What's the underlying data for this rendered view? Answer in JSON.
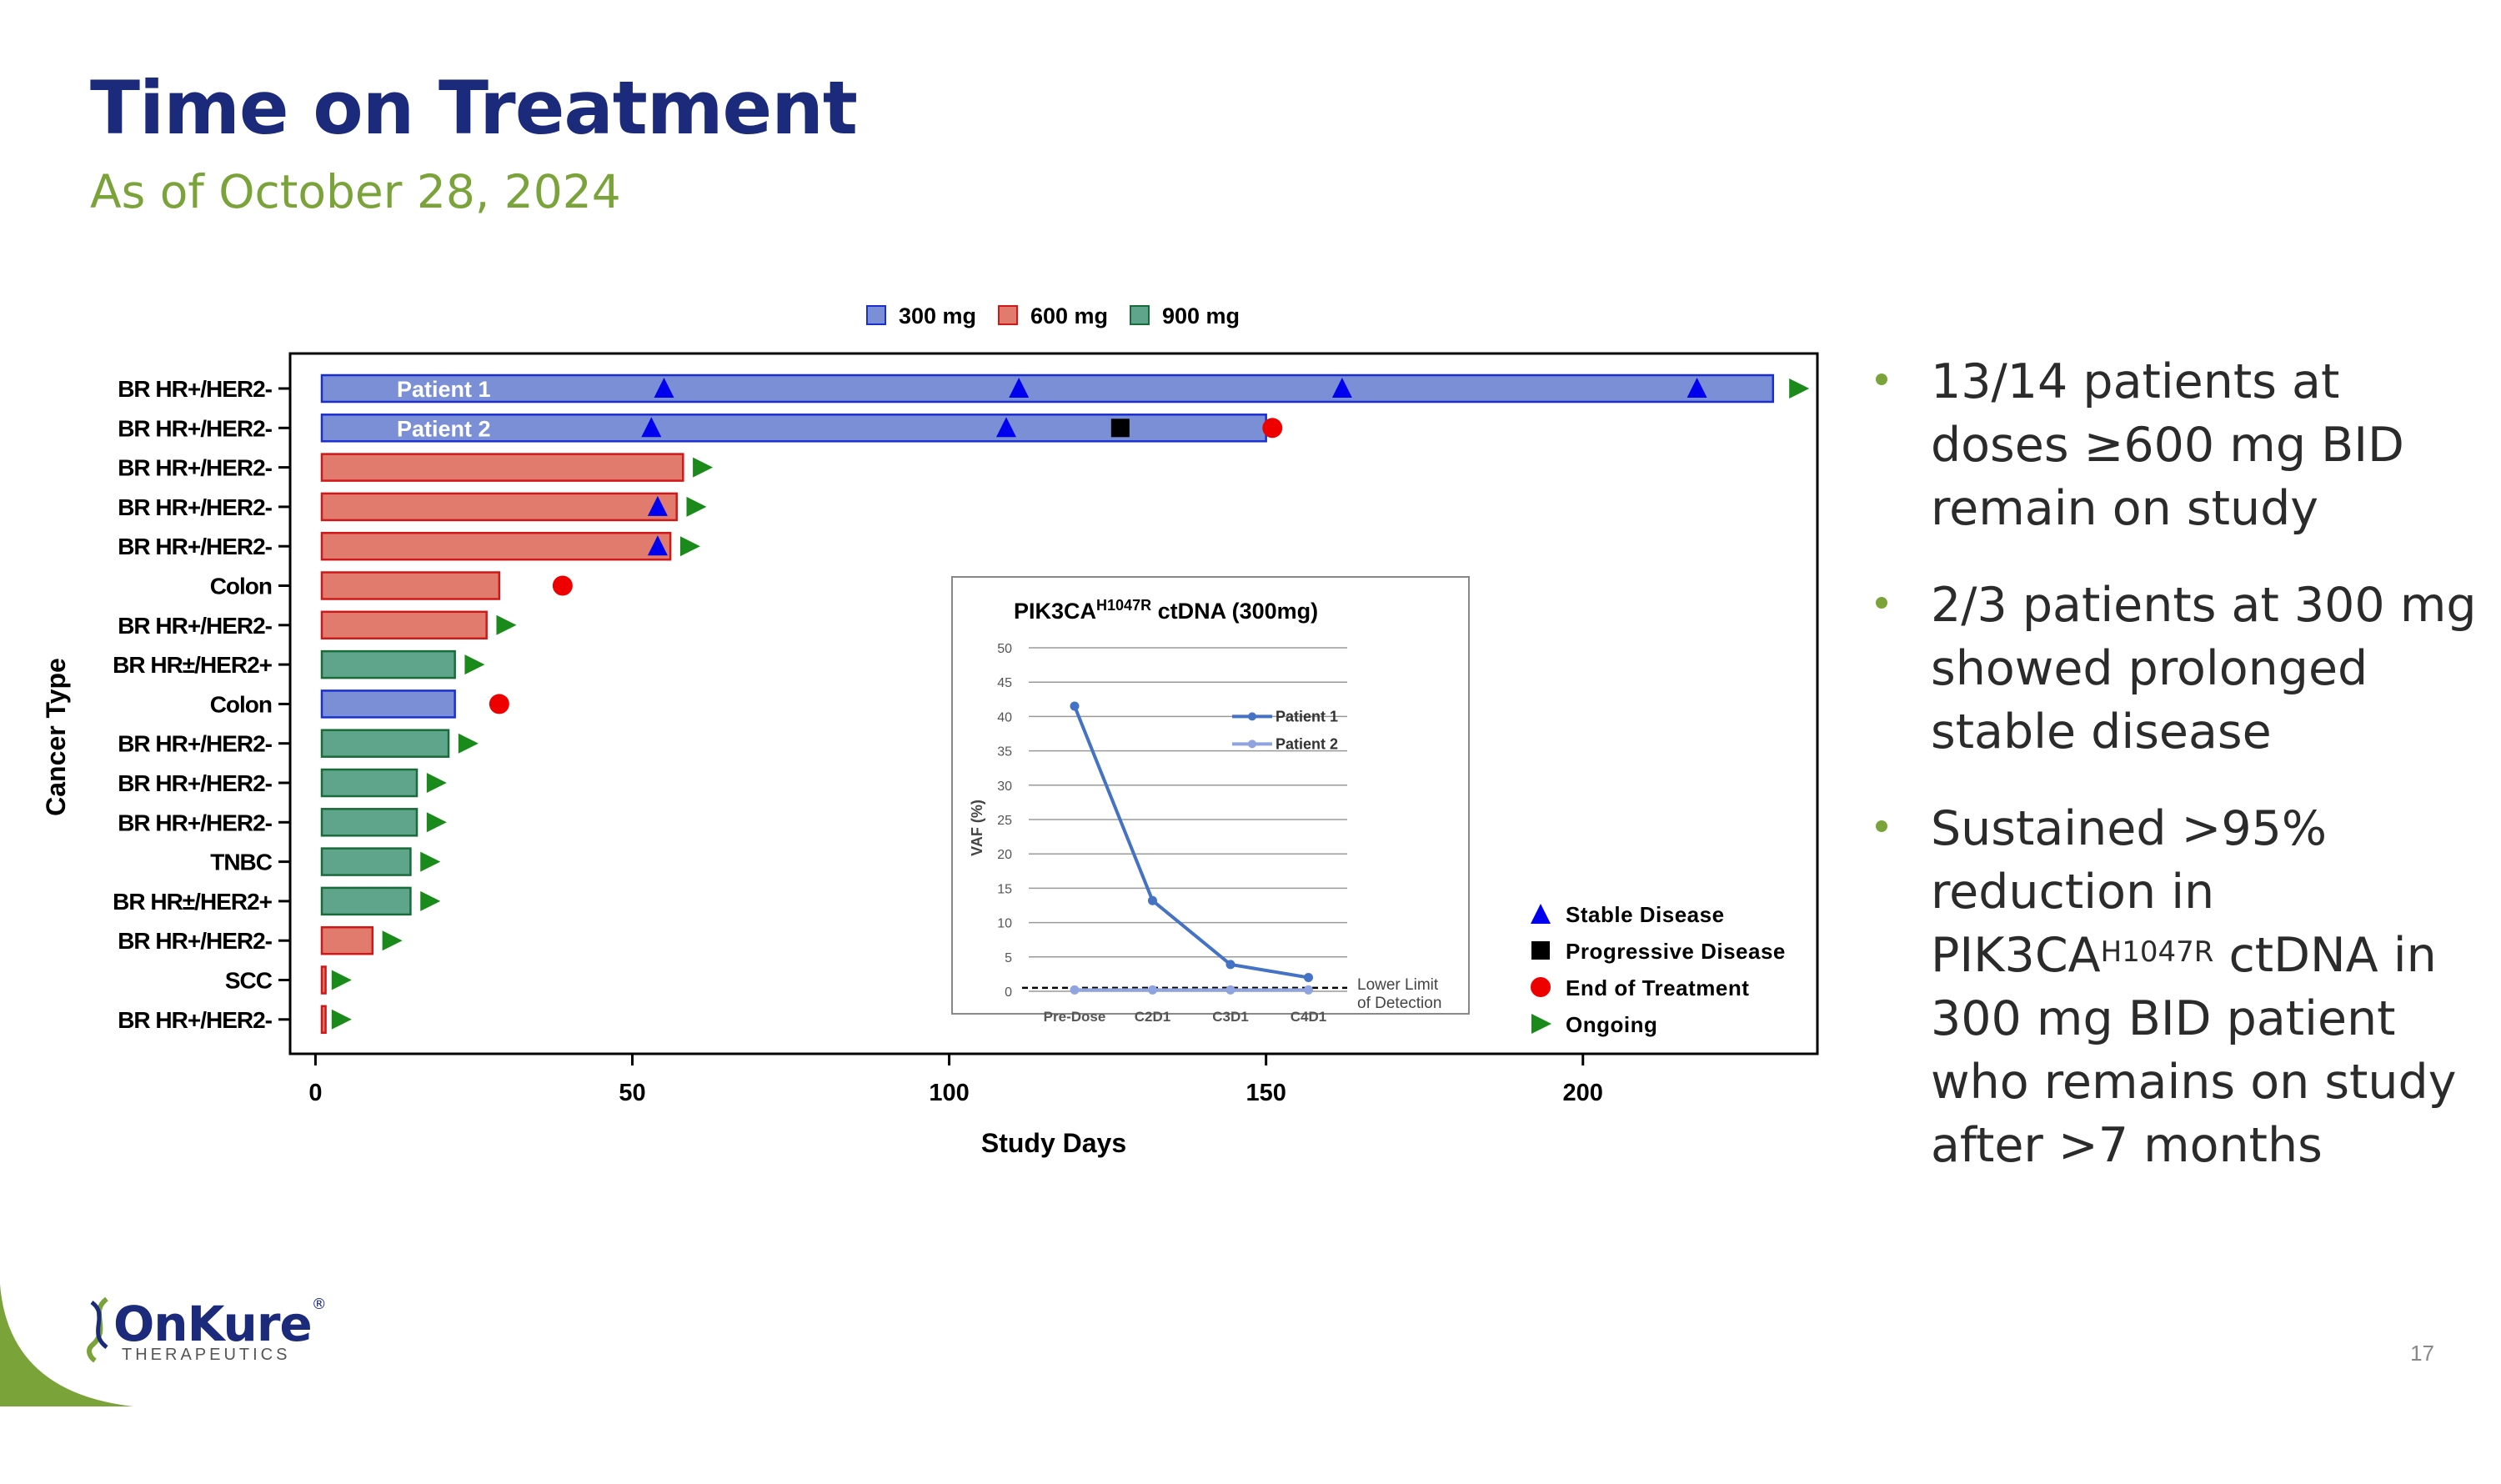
{
  "title": "Time on Treatment",
  "subtitle": "As of October 28, 2024",
  "bullets": [
    {
      "parts": [
        {
          "t": "13/14 patients at doses ≥600 mg BID remain on study"
        }
      ]
    },
    {
      "parts": [
        {
          "t": "2/3 patients at 300 mg showed prolonged stable disease"
        }
      ]
    },
    {
      "parts": [
        {
          "t": "Sustained >95% reduction in PIK3CA"
        },
        {
          "t": "H1047R",
          "sup": true
        },
        {
          "t": " ctDNA in 300 mg BID patient who remains on study after >7 months"
        }
      ]
    }
  ],
  "page_number": "17",
  "logo": {
    "name": "OnKure",
    "registered": "®",
    "tagline": "THERAPEUTICS"
  },
  "colors": {
    "navy": "#1b2a7a",
    "green": "#7aa33a",
    "dose300": "#7b8fd6",
    "dose600": "#e07b6e",
    "dose900": "#5fa58b",
    "stable": "#0000ee",
    "end": "#ee0000",
    "ongoing": "#1a8a1a"
  },
  "chart_data": [
    {
      "type": "swimmer",
      "xlabel": "Study Days",
      "ylabel": "Cancer Type",
      "xlim": [
        -4,
        237
      ],
      "xticks": [
        0,
        50,
        100,
        150,
        200
      ],
      "dose_legend": [
        {
          "dose": "300mg",
          "label": "300 mg"
        },
        {
          "dose": "600mg",
          "label": "600 mg"
        },
        {
          "dose": "900mg",
          "label": "900 mg"
        }
      ],
      "event_legend": [
        {
          "shape": "triangle",
          "label": "Stable Disease"
        },
        {
          "shape": "square",
          "label": "Progressive Disease"
        },
        {
          "shape": "circle",
          "label": "End of Treatment"
        },
        {
          "shape": "arrow",
          "label": "Ongoing"
        }
      ],
      "rows": [
        {
          "type": "BR HR+/HER2-",
          "dose": "300mg",
          "start": 1,
          "end": 230,
          "label": "Patient 1",
          "stable": [
            55,
            111,
            162,
            218
          ],
          "pd": [],
          "eot": [],
          "ongoing": 234
        },
        {
          "type": "BR HR+/HER2-",
          "dose": "300mg",
          "start": 1,
          "end": 150,
          "label": "Patient 2",
          "stable": [
            53,
            109
          ],
          "pd": [
            127
          ],
          "eot": [
            151
          ],
          "ongoing": null
        },
        {
          "type": "BR HR+/HER2-",
          "dose": "600mg",
          "start": 1,
          "end": 58,
          "label": "",
          "stable": [],
          "pd": [],
          "eot": [],
          "ongoing": 61
        },
        {
          "type": "BR HR+/HER2-",
          "dose": "600mg",
          "start": 1,
          "end": 57,
          "label": "",
          "stable": [
            54
          ],
          "pd": [],
          "eot": [],
          "ongoing": 60
        },
        {
          "type": "BR HR+/HER2-",
          "dose": "600mg",
          "start": 1,
          "end": 56,
          "label": "",
          "stable": [
            54
          ],
          "pd": [],
          "eot": [],
          "ongoing": 59
        },
        {
          "type": "Colon",
          "dose": "600mg",
          "start": 1,
          "end": 29,
          "label": "",
          "stable": [],
          "pd": [],
          "eot": [
            39
          ],
          "ongoing": null
        },
        {
          "type": "BR HR+/HER2-",
          "dose": "600mg",
          "start": 1,
          "end": 27,
          "label": "",
          "stable": [],
          "pd": [],
          "eot": [],
          "ongoing": 30
        },
        {
          "type": "BR HR±/HER2+",
          "dose": "900mg",
          "start": 1,
          "end": 22,
          "label": "",
          "stable": [],
          "pd": [],
          "eot": [],
          "ongoing": 25
        },
        {
          "type": "Colon",
          "dose": "300mg",
          "start": 1,
          "end": 22,
          "label": "",
          "stable": [],
          "pd": [],
          "eot": [
            29
          ],
          "ongoing": null
        },
        {
          "type": "BR HR+/HER2-",
          "dose": "900mg",
          "start": 1,
          "end": 21,
          "label": "",
          "stable": [],
          "pd": [],
          "eot": [],
          "ongoing": 24
        },
        {
          "type": "BR HR+/HER2-",
          "dose": "900mg",
          "start": 1,
          "end": 16,
          "label": "",
          "stable": [],
          "pd": [],
          "eot": [],
          "ongoing": 19
        },
        {
          "type": "BR HR+/HER2-",
          "dose": "900mg",
          "start": 1,
          "end": 16,
          "label": "",
          "stable": [],
          "pd": [],
          "eot": [],
          "ongoing": 19
        },
        {
          "type": "TNBC",
          "dose": "900mg",
          "start": 1,
          "end": 15,
          "label": "",
          "stable": [],
          "pd": [],
          "eot": [],
          "ongoing": 18
        },
        {
          "type": "BR HR±/HER2+",
          "dose": "900mg",
          "start": 1,
          "end": 15,
          "label": "",
          "stable": [],
          "pd": [],
          "eot": [],
          "ongoing": 18
        },
        {
          "type": "BR HR+/HER2-",
          "dose": "600mg",
          "start": 1,
          "end": 9,
          "label": "",
          "stable": [],
          "pd": [],
          "eot": [],
          "ongoing": 12
        },
        {
          "type": "SCC",
          "dose": "600mg",
          "start": 1,
          "end": 1.6,
          "label": "",
          "stable": [],
          "pd": [],
          "eot": [],
          "ongoing": 4
        },
        {
          "type": "BR HR+/HER2-",
          "dose": "600mg",
          "start": 1,
          "end": 1.6,
          "label": "",
          "stable": [],
          "pd": [],
          "eot": [],
          "ongoing": 4
        }
      ]
    },
    {
      "type": "line",
      "title": "PIK3CA",
      "title_sup": "H1047R",
      "title_suffix": " ctDNA (300mg)",
      "ylabel": "VAF (%)",
      "ylim": [
        0,
        50
      ],
      "yticks": [
        0,
        5,
        10,
        15,
        20,
        25,
        30,
        35,
        40,
        45,
        50
      ],
      "categories": [
        "Pre-Dose",
        "C2D1",
        "C3D1",
        "C4D1"
      ],
      "series": [
        {
          "name": "Patient 1",
          "values": [
            41.5,
            13.2,
            3.9,
            2.0
          ]
        },
        {
          "name": "Patient 2",
          "values": [
            0.2,
            0.2,
            0.2,
            0.2
          ]
        }
      ],
      "reference": {
        "value": 0.5,
        "label": [
          "Lower Limit",
          "of Detection"
        ]
      }
    }
  ]
}
